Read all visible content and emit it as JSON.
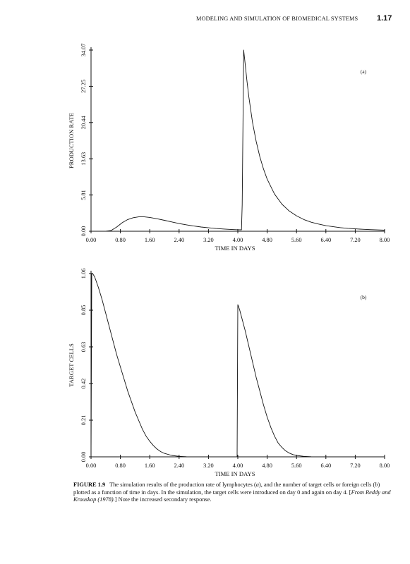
{
  "header": {
    "title": "MODELING AND SIMULATION OF BIOMEDICAL SYSTEMS",
    "page_number": "1.17"
  },
  "chart_data": [
    {
      "type": "line",
      "panel_label": "(a)",
      "xlabel": "TIME IN DAYS",
      "ylabel": "PRODUCTION RATE",
      "xlim": [
        0,
        8
      ],
      "ylim": [
        0,
        34.07
      ],
      "x_ticks": [
        "0.00",
        "0.80",
        "1.60",
        "2.40",
        "3.20",
        "4.00",
        "4.80",
        "5.60",
        "6.40",
        "7.20",
        "8.00"
      ],
      "y_ticks": [
        "0.00",
        "5.81",
        "13.63",
        "20.44",
        "27.25",
        "34.07"
      ],
      "series": [
        {
          "x": [
            0,
            0.4,
            0.55,
            0.7,
            0.85,
            1.0,
            1.15,
            1.3,
            1.45,
            1.6,
            1.8,
            2.0,
            2.2,
            2.4,
            2.6,
            2.8,
            3.0,
            3.2,
            3.4,
            3.6,
            3.8,
            4.0,
            4.1,
            4.12,
            4.14,
            4.16,
            4.2,
            4.25,
            4.3,
            4.4,
            4.5,
            4.6,
            4.7,
            4.8,
            5.0,
            5.2,
            5.4,
            5.6,
            5.8,
            6.0,
            6.2,
            6.4,
            6.6,
            6.8,
            7.0,
            7.2,
            7.4,
            7.6,
            7.8,
            8.0
          ],
          "y": [
            0,
            0,
            0.15,
            0.8,
            1.6,
            2.2,
            2.55,
            2.7,
            2.7,
            2.6,
            2.35,
            2.05,
            1.75,
            1.45,
            1.2,
            0.98,
            0.8,
            0.65,
            0.52,
            0.42,
            0.34,
            0.28,
            0.26,
            5,
            20,
            34.07,
            31.5,
            28.2,
            25.3,
            20.5,
            16.9,
            14.0,
            11.7,
            9.8,
            7.0,
            5.1,
            3.8,
            2.9,
            2.2,
            1.7,
            1.35,
            1.05,
            0.85,
            0.68,
            0.55,
            0.45,
            0.37,
            0.3,
            0.25,
            0.2
          ]
        }
      ]
    },
    {
      "type": "line",
      "panel_label": "(b)",
      "xlabel": "TIME IN DAYS",
      "ylabel": "TARGET CELLS",
      "xlim": [
        0,
        8
      ],
      "ylim": [
        0,
        1.06
      ],
      "x_ticks": [
        "0.00",
        "0.80",
        "1.60",
        "2.40",
        "3.20",
        "4.00",
        "4.80",
        "5.60",
        "6.40",
        "7.20",
        "8.00"
      ],
      "y_ticks": [
        "0.00",
        "0.21",
        "0.42",
        "0.63",
        "0.85",
        "1.06"
      ],
      "series": [
        {
          "x": [
            0,
            0.02,
            0.05,
            0.1,
            0.2,
            0.3,
            0.4,
            0.5,
            0.6,
            0.7,
            0.8,
            0.9,
            1.0,
            1.1,
            1.2,
            1.3,
            1.4,
            1.5,
            1.6,
            1.7,
            1.8,
            1.9,
            2.0,
            2.2,
            2.4,
            2.6,
            3.0,
            3.5,
            3.98,
            4.0,
            4.02,
            4.05,
            4.1,
            4.2,
            4.3,
            4.4,
            4.5,
            4.6,
            4.7,
            4.8,
            4.9,
            5.0,
            5.1,
            5.2,
            5.3,
            5.4,
            5.5,
            5.6,
            5.8,
            6.0,
            6.5,
            7.0,
            8.0
          ],
          "y": [
            0,
            1.06,
            1.058,
            1.04,
            0.98,
            0.91,
            0.83,
            0.75,
            0.67,
            0.59,
            0.52,
            0.45,
            0.38,
            0.32,
            0.26,
            0.21,
            0.16,
            0.12,
            0.09,
            0.065,
            0.045,
            0.03,
            0.02,
            0.008,
            0.003,
            0.001,
            0,
            0,
            0,
            0.88,
            0.87,
            0.85,
            0.81,
            0.73,
            0.64,
            0.55,
            0.46,
            0.38,
            0.3,
            0.23,
            0.17,
            0.12,
            0.08,
            0.055,
            0.035,
            0.022,
            0.013,
            0.008,
            0.003,
            0.001,
            0,
            0,
            0
          ]
        }
      ]
    }
  ],
  "caption": {
    "label": "FIGURE 1.9",
    "t1": "The simulation results of the production rate of lymphocytes (",
    "t2": "a",
    "t3": "), and the number of target cells or foreign cells (",
    "t4": "b",
    "t5": ") plotted as a function of time in days. In the simulation, the target cells were introduced on day 0 and again on day 4. [",
    "t6": "From Reddy and Krouskop (1978).",
    "t7": "] Note the increased secondary response."
  }
}
